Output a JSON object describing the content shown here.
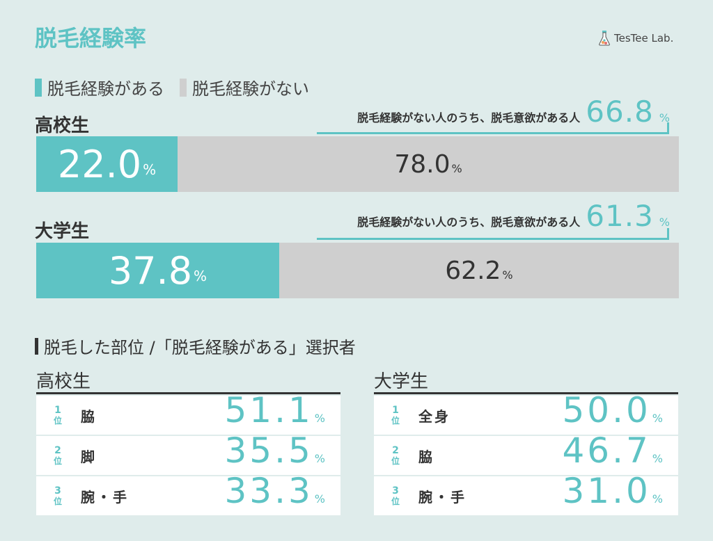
{
  "title": "脱毛経験率",
  "logo": {
    "text": "TesTee Lab."
  },
  "legend": {
    "yes": "脱毛経験がある",
    "no": "脱毛経験がない"
  },
  "colors": {
    "yes": "#5ec3c4",
    "no": "#cfcfcf",
    "background": "#dfeceb"
  },
  "note_text": "脱毛経験がない人のうち、脱毛意欲がある人",
  "percent_sign": "%",
  "chart_data": [
    {
      "type": "bar",
      "orientation": "horizontal-stacked",
      "categories": [
        "高校生",
        "大学生"
      ],
      "series": [
        {
          "name": "脱毛経験がある",
          "values": [
            22.0,
            37.8
          ],
          "labels": [
            "22.0",
            "37.8"
          ]
        },
        {
          "name": "脱毛経験がない",
          "values": [
            78.0,
            62.2
          ],
          "labels": [
            "78.0",
            "62.2"
          ]
        }
      ],
      "annotation": {
        "text": "脱毛経験がない人のうち、脱毛意欲がある人",
        "values": [
          66.8,
          61.3
        ],
        "labels": [
          "66.8",
          "61.3"
        ]
      }
    },
    {
      "type": "table",
      "title": "脱毛した部位 /「脱毛経験がある」選択者",
      "groups": [
        {
          "name": "高校生",
          "rows": [
            {
              "rank": "1",
              "unit": "位",
              "part": "脇",
              "value": "51.1"
            },
            {
              "rank": "2",
              "unit": "位",
              "part": "脚",
              "value": "35.5"
            },
            {
              "rank": "3",
              "unit": "位",
              "part": "腕・手",
              "value": "33.3"
            }
          ]
        },
        {
          "name": "大学生",
          "rows": [
            {
              "rank": "1",
              "unit": "位",
              "part": "全身",
              "value": "50.0"
            },
            {
              "rank": "2",
              "unit": "位",
              "part": "脇",
              "value": "46.7"
            },
            {
              "rank": "3",
              "unit": "位",
              "part": "腕・手",
              "value": "31.0"
            }
          ]
        }
      ]
    }
  ]
}
